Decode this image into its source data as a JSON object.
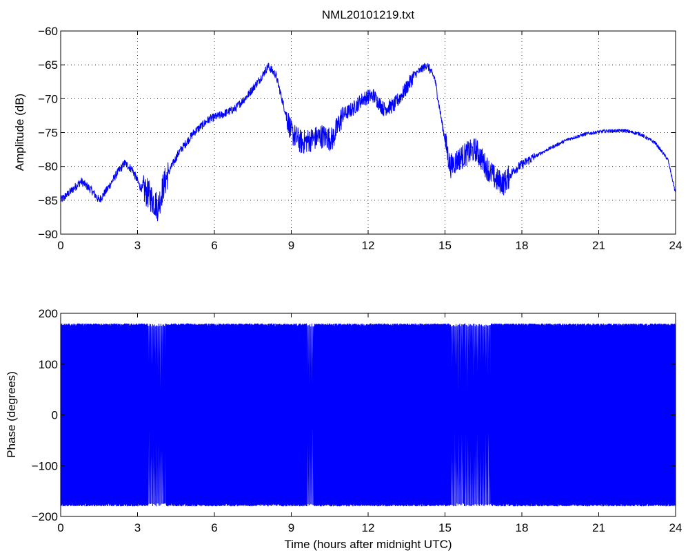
{
  "figure": {
    "title": "NML20101219.txt"
  },
  "chart_data": [
    {
      "type": "line",
      "title": "NML20101219.txt",
      "xlabel": "",
      "ylabel": "Amplitude (dB)",
      "xlim": [
        0,
        24
      ],
      "ylim": [
        -90,
        -60
      ],
      "xticks": [
        "0",
        "3",
        "6",
        "9",
        "12",
        "15",
        "18",
        "21",
        "24"
      ],
      "yticks": [
        "−90",
        "−85",
        "−80",
        "−75",
        "−70",
        "−65",
        "−60"
      ],
      "grid": true,
      "line_color": "#0000ff",
      "x": [
        0,
        0.3,
        0.8,
        1.2,
        1.5,
        1.8,
        2.2,
        2.5,
        2.8,
        3.1,
        3.4,
        3.8,
        4.0,
        4.2,
        4.6,
        5.2,
        5.8,
        6.2,
        6.8,
        7.3,
        7.8,
        8.1,
        8.4,
        8.7,
        9.0,
        9.4,
        9.8,
        10.2,
        10.6,
        11.0,
        11.4,
        11.8,
        12.2,
        12.6,
        13.0,
        13.4,
        13.8,
        14.3,
        14.6,
        14.9,
        15.2,
        15.5,
        15.9,
        16.2,
        16.6,
        17.0,
        17.3,
        17.7,
        18.3,
        19.0,
        19.8,
        20.5,
        21.2,
        22.0,
        22.6,
        23.2,
        23.7,
        24.0
      ],
      "y": [
        -85,
        -84,
        -82.2,
        -83.5,
        -85,
        -83.5,
        -81,
        -79.5,
        -80.5,
        -83,
        -84,
        -86,
        -83,
        -81,
        -78,
        -75,
        -73,
        -72.5,
        -71.5,
        -69.5,
        -67,
        -65.2,
        -66.5,
        -71,
        -75,
        -76.5,
        -76,
        -75.5,
        -76,
        -72.5,
        -71.5,
        -70,
        -69.5,
        -71.5,
        -71,
        -69,
        -66.5,
        -65,
        -67,
        -74,
        -80,
        -79,
        -78,
        -77.5,
        -80,
        -82,
        -82.5,
        -80.5,
        -79,
        -77.5,
        -76,
        -75.2,
        -74.8,
        -74.7,
        -75.2,
        -76.5,
        -79,
        -84
      ]
    },
    {
      "type": "line",
      "title": "",
      "xlabel": "Time (hours after midnight UTC)",
      "ylabel": "Phase (degrees)",
      "xlim": [
        0,
        24
      ],
      "ylim": [
        -200,
        200
      ],
      "xticks": [
        "0",
        "3",
        "6",
        "9",
        "12",
        "15",
        "18",
        "21",
        "24"
      ],
      "yticks": [
        "−200",
        "−100",
        "0",
        "100",
        "200"
      ],
      "grid": false,
      "line_color": "#0000ff",
      "phase_wraps_between": [
        -180,
        180
      ],
      "slow_wrap_intervals": [
        [
          3.4,
          4.1
        ],
        [
          9.6,
          9.9
        ],
        [
          15.2,
          16.8
        ]
      ]
    }
  ]
}
